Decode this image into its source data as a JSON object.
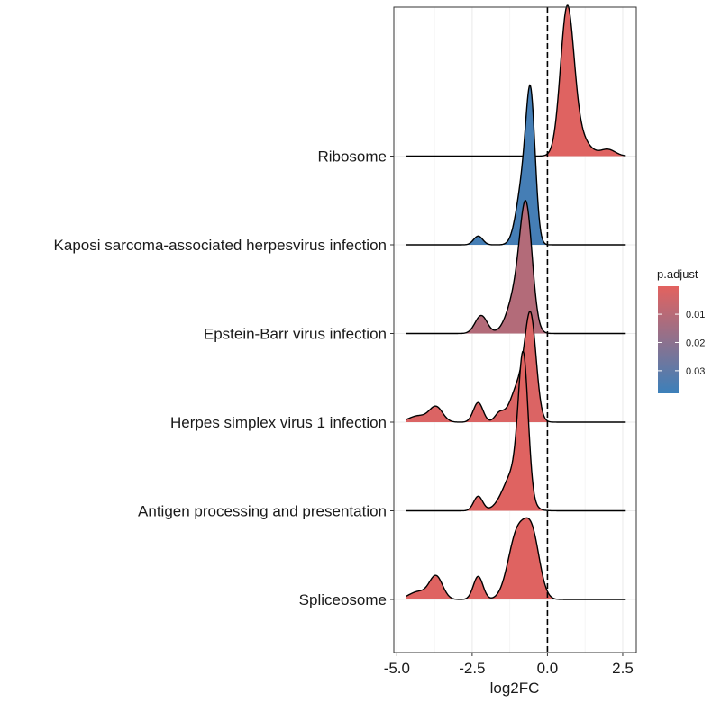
{
  "chart_data": {
    "type": "ridgeline",
    "xlabel": "log2FC",
    "ylabel": "",
    "xlim": [
      -5.1,
      2.95
    ],
    "x_ticks": [
      {
        "value": -5.0,
        "label": "-5.0"
      },
      {
        "value": -2.5,
        "label": "-2.5"
      },
      {
        "value": 0.0,
        "label": "0.0"
      },
      {
        "value": 2.5,
        "label": "2.5"
      }
    ],
    "reference_line": {
      "x": 0,
      "style": "dashed"
    },
    "grid": "vertical-only",
    "legend": {
      "title": "p.adjust",
      "placement": "right",
      "range": [
        0.0001,
        0.038
      ],
      "color_low": "#E3625F",
      "color_high": "#3C80BA",
      "ticks": [
        {
          "value": 0.01,
          "label": "0.01"
        },
        {
          "value": 0.02,
          "label": "0.02"
        },
        {
          "value": 0.03,
          "label": "0.03"
        }
      ]
    },
    "series": [
      {
        "name": "Ribosome",
        "p_adjust": 0.001,
        "x_range": [
          -4.7,
          2.6
        ],
        "peak_height": 1.7,
        "components": [
          {
            "mu": 0.65,
            "sigma": 0.22,
            "w": 1.0
          },
          {
            "mu": 0.95,
            "sigma": 0.35,
            "w": 0.18
          },
          {
            "mu": 2.0,
            "sigma": 0.25,
            "w": 0.05
          }
        ]
      },
      {
        "name": "Kaposi sarcoma-associated herpesvirus infection",
        "p_adjust": 0.036,
        "x_range": [
          -4.7,
          2.6
        ],
        "peak_height": 1.8,
        "components": [
          {
            "mu": -0.55,
            "sigma": 0.15,
            "w": 1.0
          },
          {
            "mu": -0.8,
            "sigma": 0.22,
            "w": 0.5
          },
          {
            "mu": -2.3,
            "sigma": 0.15,
            "w": 0.07
          }
        ]
      },
      {
        "name": "Epstein-Barr virus infection",
        "p_adjust": 0.011,
        "x_range": [
          -4.7,
          2.6
        ],
        "peak_height": 1.5,
        "components": [
          {
            "mu": -0.7,
            "sigma": 0.2,
            "w": 1.0
          },
          {
            "mu": -1.0,
            "sigma": 0.3,
            "w": 0.4
          },
          {
            "mu": -2.2,
            "sigma": 0.2,
            "w": 0.17
          }
        ]
      },
      {
        "name": "Herpes simplex virus 1 infection",
        "p_adjust": 0.002,
        "x_range": [
          -4.7,
          2.6
        ],
        "peak_height": 1.25,
        "components": [
          {
            "mu": -0.55,
            "sigma": 0.18,
            "w": 1.0
          },
          {
            "mu": -0.9,
            "sigma": 0.3,
            "w": 0.45
          },
          {
            "mu": -1.6,
            "sigma": 0.15,
            "w": 0.09
          },
          {
            "mu": -2.3,
            "sigma": 0.16,
            "w": 0.22
          },
          {
            "mu": -3.7,
            "sigma": 0.22,
            "w": 0.17
          },
          {
            "mu": -4.3,
            "sigma": 0.3,
            "w": 0.07
          }
        ]
      },
      {
        "name": "Antigen processing and presentation",
        "p_adjust": 0.001,
        "x_range": [
          -4.7,
          2.6
        ],
        "peak_height": 1.8,
        "components": [
          {
            "mu": -0.8,
            "sigma": 0.16,
            "w": 1.0
          },
          {
            "mu": -1.1,
            "sigma": 0.35,
            "w": 0.3
          },
          {
            "mu": -2.3,
            "sigma": 0.15,
            "w": 0.11
          }
        ]
      },
      {
        "name": "Spliceosome",
        "p_adjust": 0.001,
        "x_range": [
          -4.7,
          2.6
        ],
        "peak_height": 0.92,
        "components": [
          {
            "mu": -0.5,
            "sigma": 0.25,
            "w": 0.75
          },
          {
            "mu": -1.0,
            "sigma": 0.3,
            "w": 0.85
          },
          {
            "mu": -2.3,
            "sigma": 0.16,
            "w": 0.3
          },
          {
            "mu": -3.7,
            "sigma": 0.22,
            "w": 0.3
          },
          {
            "mu": -4.3,
            "sigma": 0.3,
            "w": 0.1
          }
        ]
      }
    ]
  }
}
